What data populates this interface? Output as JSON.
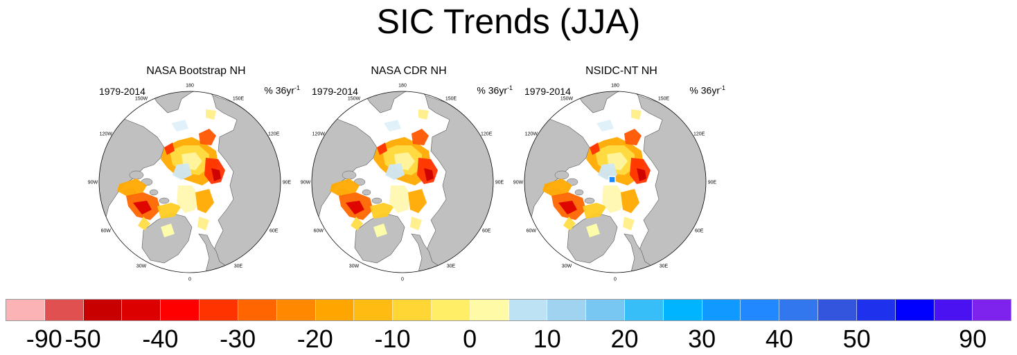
{
  "title": "SIC Trends (JJA)",
  "panels": [
    {
      "title": "NASA Bootstrap NH",
      "period": "1979-2014",
      "units": "% 36yr",
      "units_exp": "-1",
      "variant": "bootstrap"
    },
    {
      "title": "NASA CDR NH",
      "period": "1979-2014",
      "units": "% 36yr",
      "units_exp": "-1",
      "variant": "cdr"
    },
    {
      "title": "NSIDC-NT NH",
      "period": "1979-2014",
      "units": "% 36yr",
      "units_exp": "-1",
      "variant": "nt"
    }
  ],
  "longitude_labels": [
    "180",
    "150E",
    "120E",
    "90E",
    "60E",
    "30E",
    "0",
    "30W",
    "60W",
    "90W",
    "120W",
    "150W"
  ],
  "colorbar": {
    "colors": [
      "#fbb3b5",
      "#e05050",
      "#c80000",
      "#dd0000",
      "#ff0000",
      "#ff3300",
      "#ff6600",
      "#ff8800",
      "#ffa500",
      "#ffbb11",
      "#ffd633",
      "#ffee66",
      "#fffaa6",
      "#bde2f3",
      "#9fd3ef",
      "#77c7f2",
      "#37bdf7",
      "#00b4ff",
      "#1099ff",
      "#2288ff",
      "#3377ee",
      "#3355dd",
      "#1e32ee",
      "#0000ff",
      "#4a12f0",
      "#7e22ee"
    ],
    "labels": [
      "-90",
      "-50",
      "-40",
      "-30",
      "-20",
      "-10",
      "0",
      "10",
      "20",
      "30",
      "40",
      "50",
      "90"
    ]
  }
}
